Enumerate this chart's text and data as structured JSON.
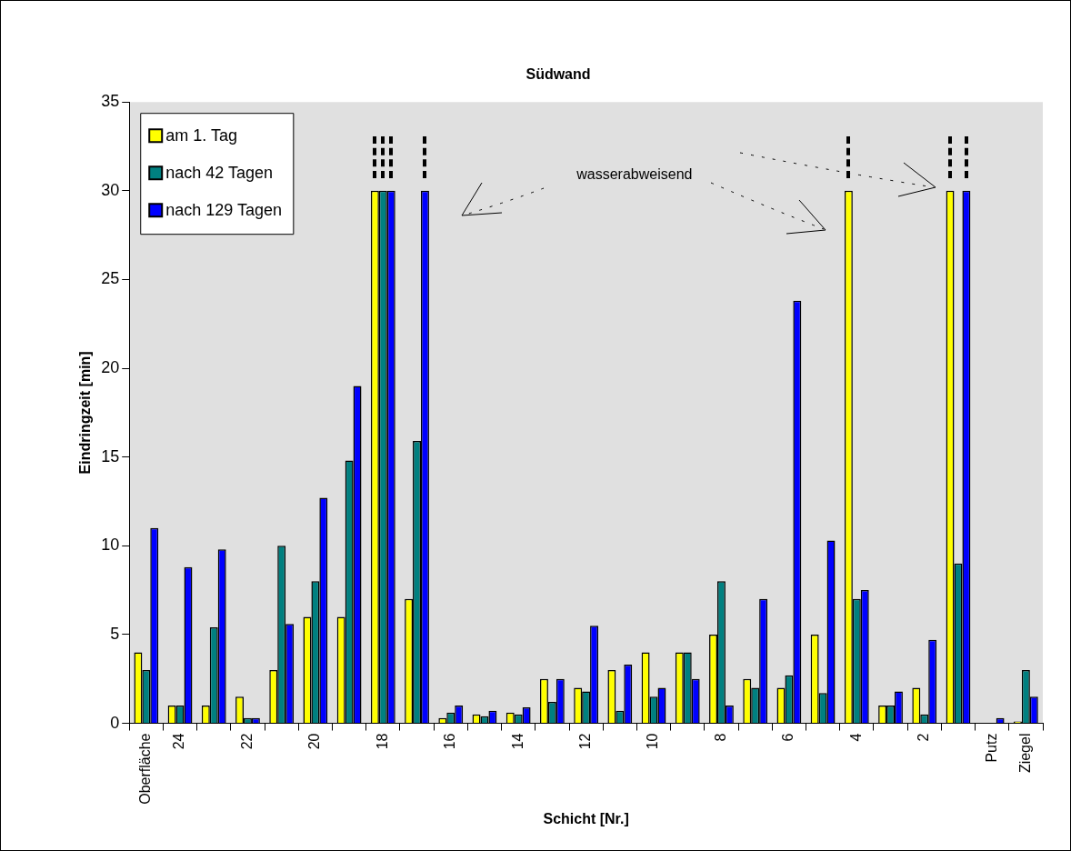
{
  "chart_data": {
    "type": "bar",
    "title": "Südwand",
    "xlabel": "Schicht [Nr.]",
    "ylabel": "Eindringzeit [min]",
    "categories": [
      "Oberfläche",
      "24",
      null,
      "22",
      null,
      "20",
      null,
      "18",
      null,
      "16",
      null,
      "14",
      null,
      "12",
      null,
      "10",
      null,
      "8",
      null,
      "6",
      null,
      "4",
      null,
      "2",
      null,
      "Putz",
      "Ziegel"
    ],
    "series": [
      {
        "name": "am 1. Tag",
        "color": "#ffff00",
        "values": [
          4,
          1,
          1,
          1.5,
          3,
          6,
          6,
          30,
          7,
          0.3,
          0.5,
          0.6,
          2.5,
          2,
          3,
          4,
          4,
          5,
          2.5,
          2,
          5,
          30,
          1,
          2,
          30,
          null,
          0.1
        ]
      },
      {
        "name": "nach 42 Tagen",
        "color": "#008080",
        "values": [
          3,
          1,
          5.4,
          0.3,
          10,
          8,
          14.8,
          30,
          15.9,
          0.6,
          0.4,
          0.5,
          1.2,
          1.8,
          0.7,
          1.5,
          4,
          8,
          2,
          2.7,
          1.7,
          7,
          1,
          0.5,
          9,
          null,
          3
        ]
      },
      {
        "name": "nach 129 Tagen",
        "color": "#0000ff",
        "values": [
          11,
          8.8,
          9.8,
          0.3,
          5.6,
          12.7,
          19,
          30,
          30,
          1,
          0.7,
          0.9,
          2.5,
          5.5,
          3.3,
          2,
          2.5,
          1,
          7,
          23.8,
          10.3,
          7.5,
          1.8,
          4.7,
          30,
          0.3,
          1.5
        ]
      }
    ],
    "ylim": [
      0,
      35
    ],
    "yticks": [
      0,
      5,
      10,
      15,
      20,
      25,
      30,
      35
    ],
    "grid": false,
    "legend": "top left",
    "annotations": [
      "wasserabweisend"
    ]
  }
}
